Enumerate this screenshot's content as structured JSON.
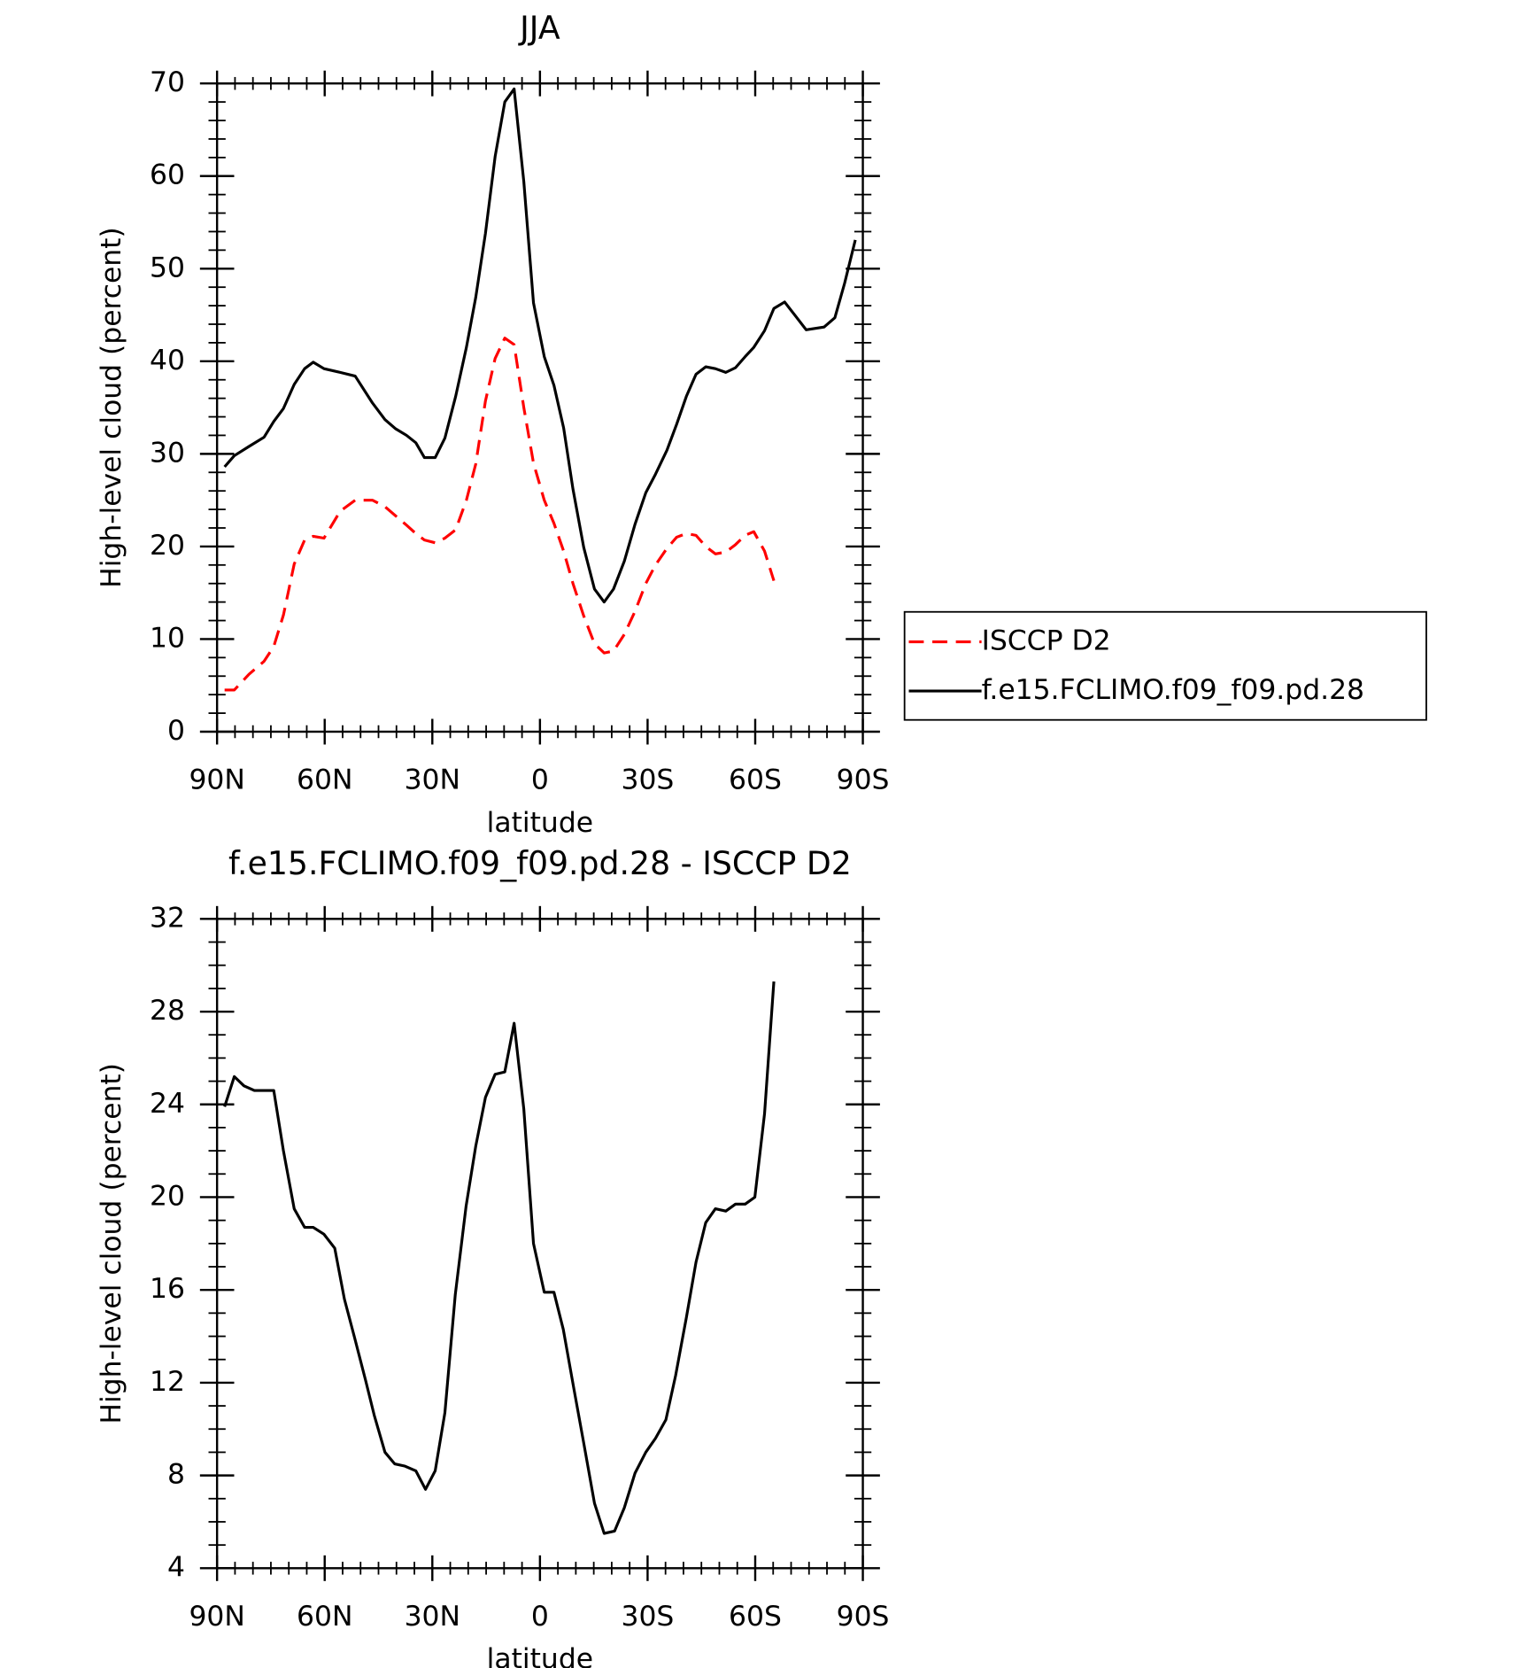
{
  "chart_data": [
    {
      "type": "line",
      "title": "JJA",
      "x_label": "latitude",
      "y_label": "High-level cloud (percent)",
      "x": [
        87.9,
        85.2,
        81.1,
        76.9,
        74.2,
        71.5,
        68.5,
        65.6,
        63.2,
        60.2,
        55.7,
        51.5,
        46.7,
        43.2,
        40.2,
        37.2,
        34.6,
        32.2,
        29.2,
        26.5,
        23.5,
        20.5,
        17.9,
        15.2,
        12.5,
        9.8,
        7.2,
        4.5,
        1.8,
        -1.2,
        -3.9,
        -6.6,
        -9.2,
        -12.2,
        -15.2,
        -17.9,
        -20.5,
        -23.5,
        -26.5,
        -29.5,
        -32.2,
        -35.4,
        -38.1,
        -40.8,
        -43.5,
        -46.2,
        -48.9,
        -51.8,
        -54.5,
        -57.2,
        -59.6,
        -62.6,
        -65.2,
        -68.2,
        -71.2,
        -74.2,
        -79.2,
        -82.2,
        -84.9,
        -87.9
      ],
      "series": [
        {
          "name": "ISCCP D2",
          "color": "#ff0000",
          "line_style": "dashed",
          "values": [
            4.5,
            4.5,
            6.2,
            7.6,
            9.2,
            12.6,
            18.1,
            20.7,
            21.1,
            20.9,
            23.8,
            25.0,
            25.0,
            24.3,
            23.3,
            22.3,
            21.4,
            20.7,
            20.4,
            20.9,
            21.8,
            25.0,
            28.9,
            35.7,
            40.3,
            42.5,
            41.8,
            35,
            29,
            25,
            22.5,
            19.5,
            16,
            12.5,
            9.5,
            8.5,
            8.7,
            10.5,
            13,
            16,
            18,
            19.8,
            21,
            21.4,
            21.2,
            20,
            19.2,
            19.4,
            20.2,
            21.2,
            21.6,
            19.5,
            16.3,
            null,
            null,
            null,
            null,
            null,
            null,
            null
          ]
        },
        {
          "name": "f.e15.FCLIMO.f09_f09.pd.28",
          "color": "#000000",
          "line_style": "solid",
          "values": [
            28.6,
            29.8,
            30.8,
            31.8,
            33.5,
            34.9,
            37.5,
            39.2,
            39.9,
            39.2,
            38.8,
            38.4,
            35.5,
            33.7,
            32.7,
            32.0,
            31.2,
            29.6,
            29.6,
            31.7,
            36.2,
            41.5,
            46.9,
            53.8,
            62.1,
            68.0,
            69.4,
            59.4,
            46.3,
            40.5,
            37.4,
            32.8,
            26.2,
            19.9,
            15.4,
            14.0,
            15.4,
            18.4,
            22.4,
            25.8,
            27.8,
            30.4,
            33.2,
            36.2,
            38.6,
            39.4,
            39.2,
            38.8,
            39.3,
            40.5,
            41.5,
            43.3,
            45.7,
            46.4,
            44.9,
            43.4,
            43.7,
            44.7,
            48.4,
            53.1
          ]
        }
      ],
      "xlim": [
        90,
        -90
      ],
      "xticks": [
        {
          "value": 90,
          "label": "90N"
        },
        {
          "value": 60,
          "label": "60N"
        },
        {
          "value": 30,
          "label": "30N"
        },
        0,
        {
          "value": -30,
          "label": "30S"
        },
        {
          "value": -60,
          "label": "60S"
        },
        {
          "value": -90,
          "label": "90S"
        }
      ],
      "ylim": [
        0,
        70
      ],
      "yticks": [
        0,
        10,
        20,
        30,
        40,
        50,
        60,
        70
      ],
      "legend": "right"
    },
    {
      "type": "line",
      "title": "f.e15.FCLIMO.f09_f09.pd.28 - ISCCP D2",
      "x_label": "latitude",
      "y_label": "High-level cloud (percent)",
      "x": [
        87.9,
        85.2,
        82.5,
        79.6,
        76.9,
        74.2,
        71.5,
        68.5,
        65.6,
        63.2,
        60.2,
        57.2,
        54.5,
        51.6,
        48.6,
        46.2,
        43.2,
        40.5,
        37.6,
        34.6,
        31.9,
        29.2,
        26.5,
        23.6,
        20.6,
        17.9,
        15.2,
        12.5,
        9.8,
        7.2,
        4.5,
        1.8,
        -1.2,
        -3.9,
        -6.5,
        -9.5,
        -12.2,
        -15.2,
        -17.9,
        -20.8,
        -23.5,
        -26.5,
        -29.5,
        -32.2,
        -35.1,
        -37.8,
        -40.8,
        -43.5,
        -46.2,
        -48.9,
        -51.8,
        -54.5,
        -57.2,
        -59.9,
        -62.6,
        -65.2
      ],
      "values": [
        23.9,
        25.2,
        24.8,
        24.6,
        24.6,
        24.6,
        22.0,
        19.5,
        18.7,
        18.7,
        18.4,
        17.8,
        15.6,
        13.9,
        12.1,
        10.6,
        9.0,
        8.5,
        8.4,
        8.2,
        7.4,
        8.2,
        10.7,
        15.8,
        19.6,
        22.2,
        24.3,
        25.3,
        25.4,
        27.5,
        23.8,
        18.0,
        15.9,
        15.9,
        14.3,
        11.7,
        9.4,
        6.8,
        5.5,
        5.6,
        6.6,
        8.1,
        9.0,
        9.6,
        10.4,
        12.3,
        14.8,
        17.2,
        18.9,
        19.5,
        19.4,
        19.7,
        19.7,
        20.0,
        23.6,
        29.3
      ],
      "color": "#000000",
      "xlim": [
        90,
        -90
      ],
      "xticks": [
        {
          "value": 90,
          "label": "90N"
        },
        {
          "value": 60,
          "label": "60N"
        },
        {
          "value": 30,
          "label": "30N"
        },
        0,
        {
          "value": -30,
          "label": "30S"
        },
        {
          "value": -60,
          "label": "60S"
        },
        {
          "value": -90,
          "label": "90S"
        }
      ],
      "ylim": [
        4,
        32
      ],
      "yticks": [
        4,
        8,
        12,
        16,
        20,
        24,
        28,
        32
      ]
    }
  ]
}
